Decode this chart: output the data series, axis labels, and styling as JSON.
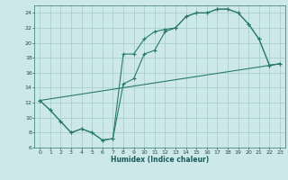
{
  "bg_color": "#cce8e8",
  "grid_color": "#aacfcf",
  "line_color": "#2a7a6a",
  "xlabel": "Humidex (Indice chaleur)",
  "xlim": [
    -0.5,
    23.5
  ],
  "ylim": [
    6,
    25
  ],
  "yticks": [
    6,
    8,
    10,
    12,
    14,
    16,
    18,
    20,
    22,
    24
  ],
  "xticks": [
    0,
    1,
    2,
    3,
    4,
    5,
    6,
    7,
    8,
    9,
    10,
    11,
    12,
    13,
    14,
    15,
    16,
    17,
    18,
    19,
    20,
    21,
    22,
    23
  ],
  "line1_x": [
    0,
    1,
    2,
    3,
    4,
    5,
    6,
    7,
    8,
    9,
    10,
    11,
    12,
    13,
    14,
    15,
    16,
    17,
    18,
    19,
    20,
    21,
    22,
    23
  ],
  "line1_y": [
    12.3,
    11.0,
    9.5,
    8.0,
    8.5,
    8.0,
    7.0,
    7.2,
    18.5,
    18.5,
    20.5,
    21.5,
    21.8,
    22.0,
    23.5,
    24.0,
    24.0,
    24.5,
    24.5,
    24.0,
    22.5,
    20.5,
    17.0,
    17.2
  ],
  "line2_x": [
    0,
    1,
    2,
    3,
    4,
    5,
    6,
    7,
    8,
    9,
    10,
    11,
    12,
    13,
    14,
    15,
    16,
    17,
    18,
    19,
    20,
    21,
    22,
    23
  ],
  "line2_y": [
    12.3,
    11.0,
    9.5,
    8.0,
    8.5,
    8.0,
    7.0,
    7.2,
    14.5,
    15.2,
    18.5,
    19.0,
    21.5,
    22.0,
    23.5,
    24.0,
    24.0,
    24.5,
    24.5,
    24.0,
    22.5,
    20.5,
    17.0,
    17.2
  ],
  "line3_x": [
    0,
    23
  ],
  "line3_y": [
    12.3,
    17.2
  ]
}
